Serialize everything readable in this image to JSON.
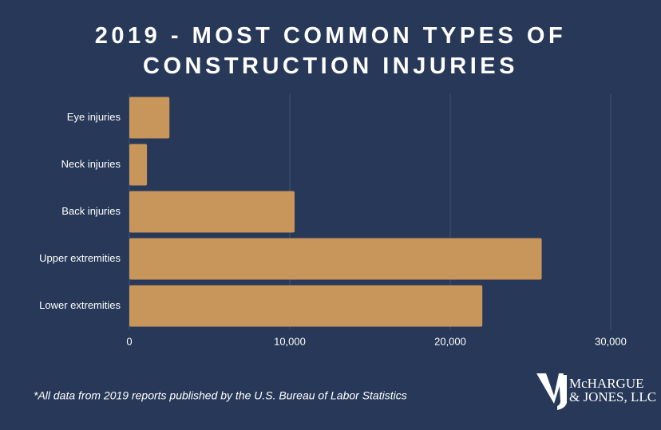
{
  "chart_data": {
    "type": "barh",
    "title": "2019 - MOST COMMON TYPES OF CONSTRUCTION INJURIES",
    "categories": [
      "Eye injuries",
      "Neck injuries",
      "Back injuries",
      "Upper extremities",
      "Lower extremities"
    ],
    "values": [
      2500,
      1100,
      10300,
      25700,
      22000
    ],
    "color": "#c8955a",
    "xlim": [
      0,
      30000
    ],
    "xticks": [
      0,
      {
        "value": 10000,
        "label": "10,000"
      },
      {
        "value": 20000,
        "label": "20,000"
      },
      {
        "value": 30000,
        "label": "30,000"
      }
    ],
    "grid": true,
    "note": "*All data from 2019 reports published by the U.S. Bureau of Labor Statistics"
  },
  "logo": {
    "line1": "McHARGUE",
    "line2": "& JONES, LLC"
  }
}
